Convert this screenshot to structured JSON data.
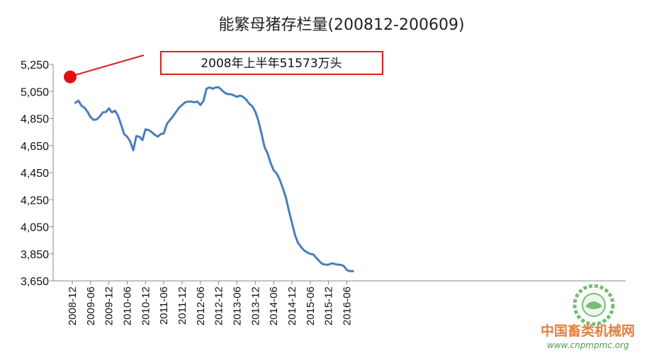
{
  "chart_data": {
    "type": "line",
    "title": "能繁母猪存栏量(200812-200609)",
    "xlabel": "",
    "ylabel": "",
    "ylim": [
      3650,
      5250
    ],
    "yticks": [
      "5,250",
      "5,050",
      "4,850",
      "4,650",
      "4,450",
      "4,250",
      "4,050",
      "3,850",
      "3,650"
    ],
    "ytick_values": [
      5250,
      5050,
      4850,
      4650,
      4450,
      4250,
      4050,
      3850,
      3650
    ],
    "xticks": [
      "2008-12",
      "2009-06",
      "2009-12",
      "2010-06",
      "2010-12",
      "2011-06",
      "2011-12",
      "2012-06",
      "2012-12",
      "2013-06",
      "2013-12",
      "2014-06",
      "2014-12",
      "2015-06",
      "2015-12",
      "2016-06"
    ],
    "grid": false,
    "line_color": "#4a7ebb",
    "series": [
      {
        "x": [
          "2009-01",
          "2009-02",
          "2009-03",
          "2009-04",
          "2009-05",
          "2009-06",
          "2009-07",
          "2009-08",
          "2009-09",
          "2009-10",
          "2009-11",
          "2009-12",
          "2010-01",
          "2010-02",
          "2010-03",
          "2010-04",
          "2010-05",
          "2010-06",
          "2010-07",
          "2010-08",
          "2010-09",
          "2010-10",
          "2010-11",
          "2010-12",
          "2011-01",
          "2011-02",
          "2011-03",
          "2011-04",
          "2011-05",
          "2011-06",
          "2011-07",
          "2011-08",
          "2011-09",
          "2011-10",
          "2011-11",
          "2011-12",
          "2012-01",
          "2012-02",
          "2012-03",
          "2012-04",
          "2012-05",
          "2012-06",
          "2012-07",
          "2012-08",
          "2012-09",
          "2012-10",
          "2012-11",
          "2012-12",
          "2013-01",
          "2013-02",
          "2013-03",
          "2013-04",
          "2013-05",
          "2013-06",
          "2013-07",
          "2013-08",
          "2013-09",
          "2013-10",
          "2013-11",
          "2013-12",
          "2014-01",
          "2014-02",
          "2014-03",
          "2014-04",
          "2014-05",
          "2014-06",
          "2014-07",
          "2014-08",
          "2014-09",
          "2014-10",
          "2014-11",
          "2014-12",
          "2015-01",
          "2015-02",
          "2015-03",
          "2015-04",
          "2015-05",
          "2015-06",
          "2015-07",
          "2015-08",
          "2015-09",
          "2015-10",
          "2015-11",
          "2015-12",
          "2016-01",
          "2016-02",
          "2016-03",
          "2016-04",
          "2016-05",
          "2016-06",
          "2016-07",
          "2016-08"
        ],
        "values": [
          4966,
          4982,
          4945,
          4930,
          4900,
          4860,
          4840,
          4843,
          4865,
          4895,
          4898,
          4925,
          4895,
          4908,
          4870,
          4805,
          4735,
          4715,
          4680,
          4615,
          4720,
          4715,
          4690,
          4770,
          4765,
          4750,
          4730,
          4716,
          4735,
          4740,
          4810,
          4838,
          4866,
          4898,
          4930,
          4950,
          4970,
          4975,
          4975,
          4970,
          4975,
          4950,
          4980,
          5070,
          5080,
          5070,
          5080,
          5080,
          5060,
          5040,
          5030,
          5030,
          5020,
          5010,
          5020,
          5010,
          4990,
          4960,
          4940,
          4900,
          4832,
          4740,
          4640,
          4592,
          4522,
          4468,
          4444,
          4398,
          4336,
          4267,
          4170,
          4080,
          3990,
          3930,
          3900,
          3875,
          3860,
          3850,
          3845,
          3820,
          3795,
          3775,
          3770,
          3770,
          3780,
          3775,
          3770,
          3769,
          3760,
          3730,
          3722,
          3722
        ]
      }
    ],
    "highlight_point": {
      "x": "2008-06",
      "y": 5157.3
    },
    "annotation": "2008年上半年51573万头"
  },
  "watermark": {
    "text": "中国畜类机械网",
    "url": "www.cnpmpmc.org"
  }
}
